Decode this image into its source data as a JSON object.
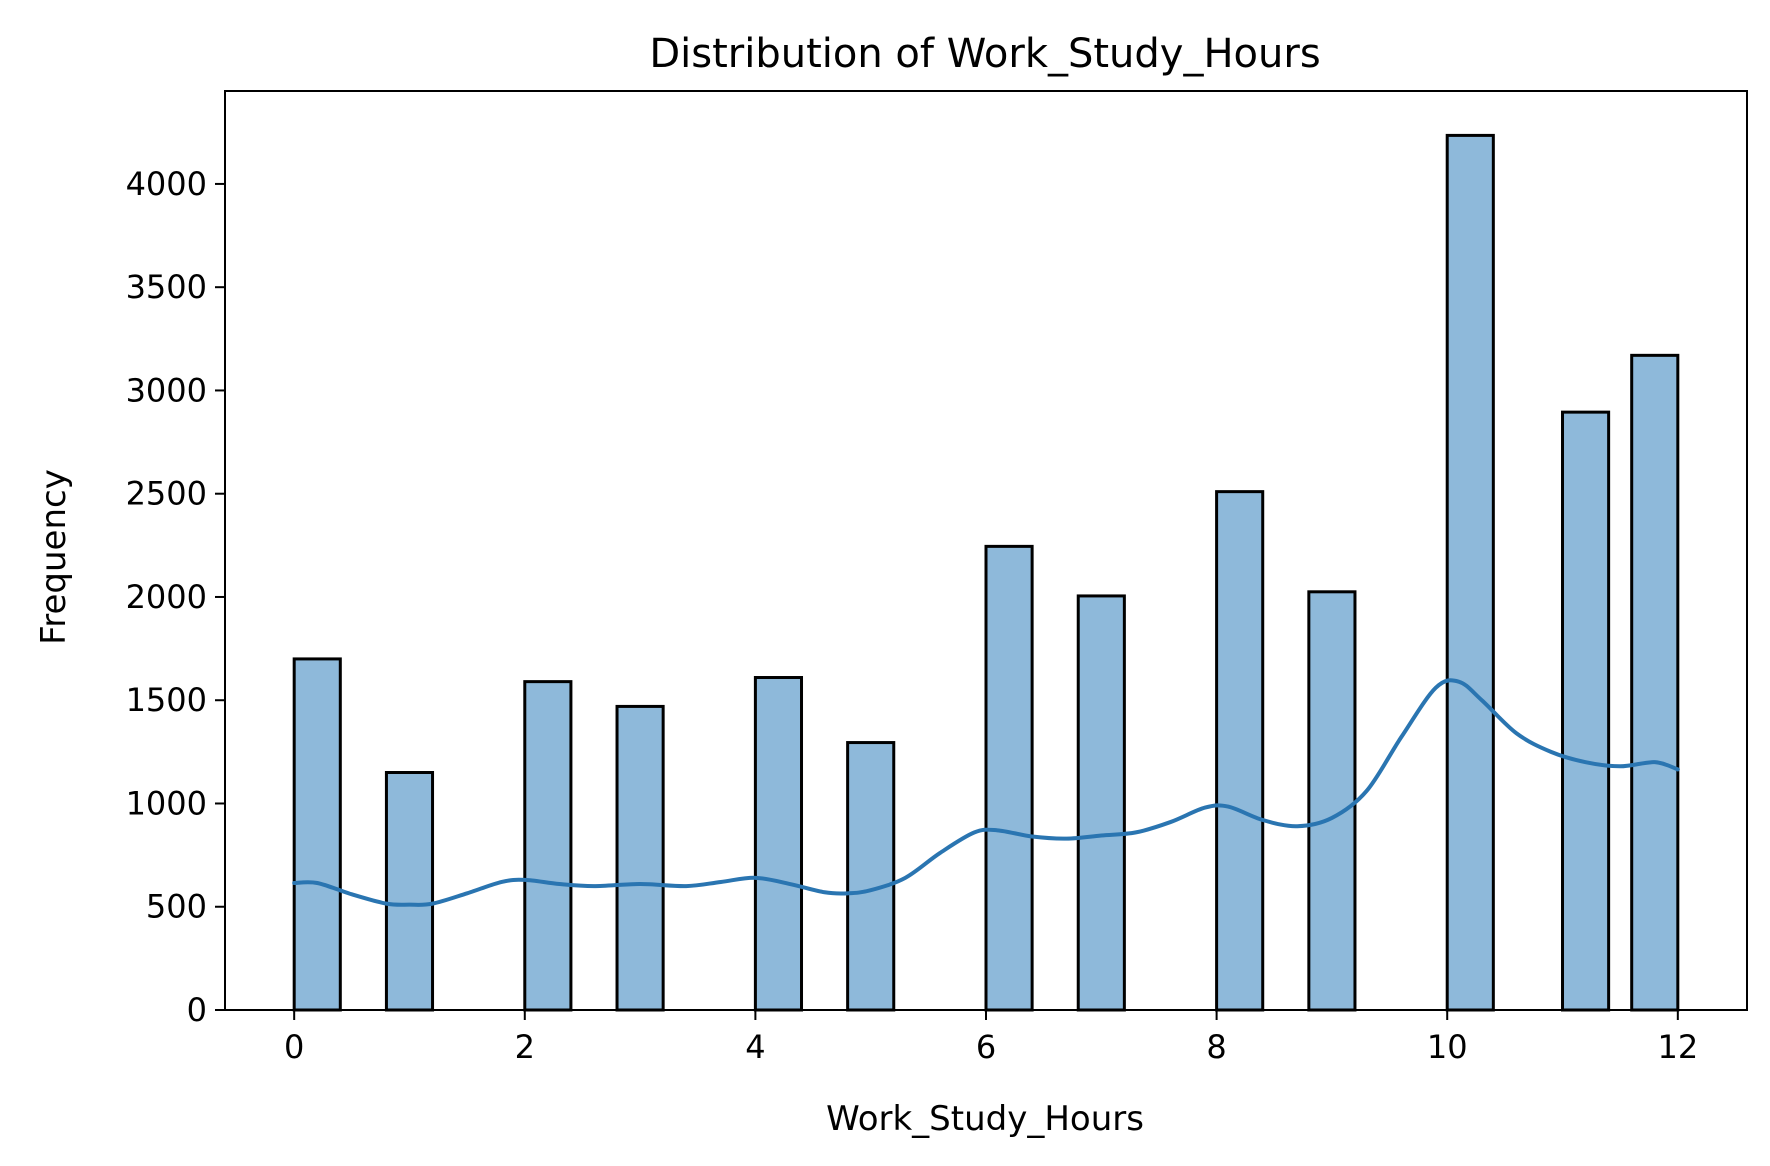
{
  "chart_data": {
    "type": "bar",
    "title": "Distribution of Work_Study_Hours",
    "xlabel": "Work_Study_Hours",
    "ylabel": "Frequency",
    "xlim": [
      -0.6,
      12.6
    ],
    "ylim": [
      0,
      4450
    ],
    "xticks": [
      0,
      2,
      4,
      6,
      8,
      10,
      12
    ],
    "yticks": [
      0,
      500,
      1000,
      1500,
      2000,
      2500,
      3000,
      3500,
      4000
    ],
    "bin_width": 0.4,
    "bins": [
      {
        "x_start": 0.0,
        "value": 1700
      },
      {
        "x_start": 0.8,
        "value": 1150
      },
      {
        "x_start": 2.0,
        "value": 1590
      },
      {
        "x_start": 2.8,
        "value": 1470
      },
      {
        "x_start": 4.0,
        "value": 1610
      },
      {
        "x_start": 4.8,
        "value": 1295
      },
      {
        "x_start": 6.0,
        "value": 2245
      },
      {
        "x_start": 6.8,
        "value": 2005
      },
      {
        "x_start": 8.0,
        "value": 2510
      },
      {
        "x_start": 8.8,
        "value": 2025
      },
      {
        "x_start": 10.0,
        "value": 4235
      },
      {
        "x_start": 11.0,
        "value": 2895
      },
      {
        "x_start": 11.6,
        "value": 3170
      }
    ],
    "kde": {
      "x": [
        0,
        0.2,
        0.5,
        0.8,
        1.0,
        1.2,
        1.5,
        1.8,
        2.0,
        2.3,
        2.6,
        3.0,
        3.4,
        3.7,
        4.0,
        4.3,
        4.6,
        4.8,
        5.0,
        5.3,
        5.6,
        5.9,
        6.1,
        6.4,
        6.7,
        7.0,
        7.3,
        7.6,
        7.9,
        8.1,
        8.4,
        8.7,
        9.0,
        9.3,
        9.6,
        9.9,
        10.1,
        10.3,
        10.6,
        10.9,
        11.2,
        11.5,
        11.8,
        12.0
      ],
      "y": [
        615,
        615,
        560,
        515,
        510,
        515,
        565,
        620,
        630,
        610,
        600,
        610,
        600,
        620,
        640,
        610,
        570,
        565,
        580,
        640,
        760,
        860,
        870,
        840,
        830,
        845,
        860,
        910,
        980,
        985,
        920,
        890,
        930,
        1060,
        1320,
        1560,
        1590,
        1500,
        1340,
        1250,
        1200,
        1180,
        1200,
        1165
      ]
    },
    "colors": {
      "bar_fill": "#8eb9da",
      "bar_edge": "#000000",
      "kde_line": "#2a75b1"
    },
    "grid": false,
    "legend": "none"
  }
}
